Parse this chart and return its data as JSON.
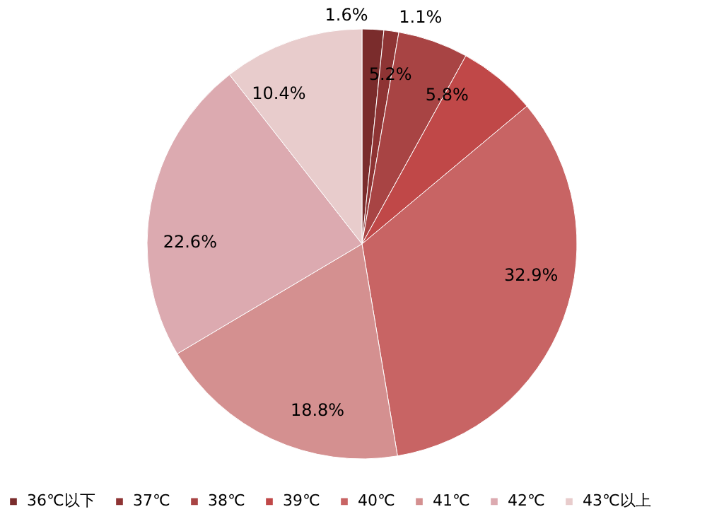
{
  "chart_data": {
    "type": "pie",
    "categories": [
      "36℃以下",
      "37℃",
      "38℃",
      "39℃",
      "40℃",
      "41℃",
      "42℃",
      "43℃以上"
    ],
    "values": [
      1.6,
      1.1,
      5.2,
      5.8,
      32.9,
      18.8,
      22.6,
      10.4
    ],
    "value_labels": [
      "1.6%",
      "1.1%",
      "5.2%",
      "5.8%",
      "32.9%",
      "18.8%",
      "22.6%",
      "10.4%"
    ],
    "colors": [
      "#7a2c2c",
      "#8e3434",
      "#a84444",
      "#c04848",
      "#c86464",
      "#d49090",
      "#dcaab0",
      "#e8cccc"
    ],
    "legend": "bottom"
  }
}
